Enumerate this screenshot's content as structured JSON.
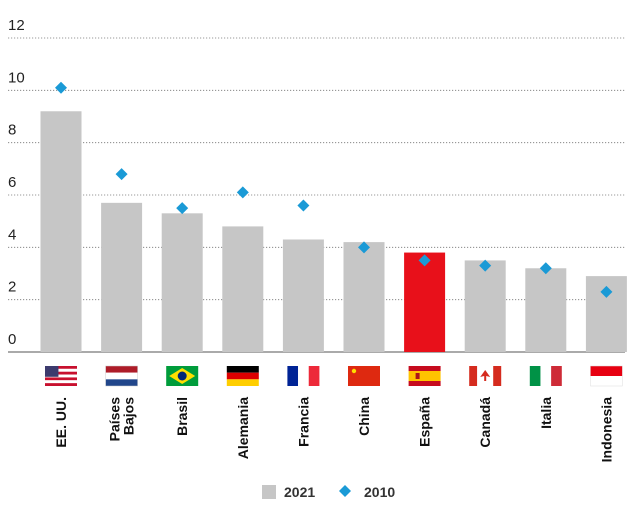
{
  "chart_data": {
    "type": "bar",
    "categories": [
      [
        "EE. UU."
      ],
      [
        "Países",
        "Bajos"
      ],
      [
        "Brasil"
      ],
      [
        "Alemania"
      ],
      [
        "Francia"
      ],
      [
        "China"
      ],
      [
        "España"
      ],
      [
        "Canadá"
      ],
      [
        "Italia"
      ],
      [
        "Indonesia"
      ]
    ],
    "flags": [
      "us-flag-icon",
      "netherlands-flag-icon",
      "brazil-flag-icon",
      "germany-flag-icon",
      "france-flag-icon",
      "china-flag-icon",
      "spain-flag-icon",
      "canada-flag-icon",
      "italy-flag-icon",
      "indonesia-flag-icon"
    ],
    "series": [
      {
        "name": "2021",
        "type": "bar",
        "color": "#c6c6c6",
        "highlight_index": 6,
        "highlight_color": "#e8101a",
        "values": [
          9.2,
          5.7,
          5.3,
          4.8,
          4.3,
          4.2,
          3.8,
          3.5,
          3.2,
          2.9
        ]
      },
      {
        "name": "2010",
        "type": "scatter",
        "marker": "diamond",
        "color": "#1a9ad6",
        "values": [
          10.1,
          6.8,
          5.5,
          6.1,
          5.6,
          4.0,
          3.5,
          3.3,
          3.2,
          2.3
        ]
      }
    ],
    "ylim": [
      0,
      12
    ],
    "yticks": [
      0,
      2,
      4,
      6,
      8,
      10,
      12
    ],
    "grid": true,
    "legend_position": "bottom-center",
    "title": "",
    "xlabel": "",
    "ylabel": ""
  }
}
